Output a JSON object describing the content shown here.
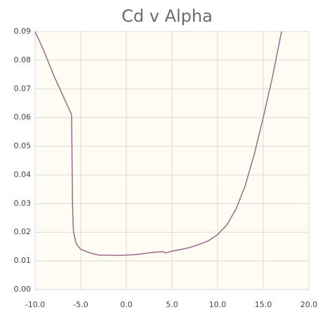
{
  "chart_data": {
    "type": "line",
    "title": "Cd v Alpha",
    "x": [
      -10,
      -9,
      -8,
      -7,
      -6,
      -5.9,
      -5.8,
      -5.5,
      -5,
      -4,
      -3,
      -2,
      -1,
      0,
      1,
      2,
      3,
      4,
      4.3,
      5,
      6,
      7,
      8,
      9,
      10,
      11,
      12,
      13,
      14,
      15,
      16,
      17
    ],
    "series": [
      {
        "color": "#9b6a8a",
        "values": [
          0.09,
          0.083,
          0.075,
          0.068,
          0.061,
          0.03,
          0.0203,
          0.016,
          0.014,
          0.0128,
          0.012,
          0.012,
          0.0119,
          0.012,
          0.0122,
          0.0126,
          0.013,
          0.0132,
          0.0128,
          0.0134,
          0.014,
          0.0147,
          0.0158,
          0.017,
          0.0192,
          0.0225,
          0.028,
          0.036,
          0.047,
          0.06,
          0.074,
          0.09
        ]
      }
    ],
    "xlim": [
      -10,
      20
    ],
    "xticks": [
      {
        "value": -10,
        "label": "-10.0"
      },
      {
        "value": -5,
        "label": "-5.0"
      },
      {
        "value": 0,
        "label": "0.0"
      },
      {
        "value": 5,
        "label": "5.0"
      },
      {
        "value": 10,
        "label": "10.0"
      },
      {
        "value": 15,
        "label": "15.0"
      },
      {
        "value": 20,
        "label": "20.0"
      }
    ],
    "ylim": [
      0,
      0.09
    ],
    "yticks": [
      {
        "value": 0,
        "label": "0.00"
      },
      0.01,
      0.02,
      0.03,
      0.04,
      0.05,
      0.06,
      0.07,
      0.08,
      0.09
    ],
    "grid": true
  }
}
